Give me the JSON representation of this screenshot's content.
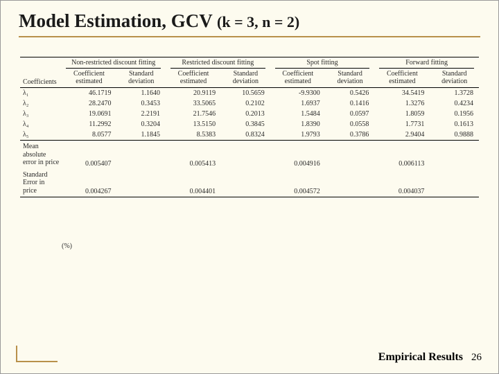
{
  "title_main": "Model Estimation, GCV",
  "title_sub": "(k = 3, n = 2)",
  "table": {
    "row_header_label": "Coefficients",
    "groups": [
      {
        "name": "Non-restricted discount fitting",
        "sub": [
          "Coefficient estimated",
          "Standard deviation"
        ]
      },
      {
        "name": "Restricted discount fitting",
        "sub": [
          "Coefficient estimated",
          "Standard deviation"
        ]
      },
      {
        "name": "Spot fitting",
        "sub": [
          "Coefficient estimated",
          "Standard deviation"
        ]
      },
      {
        "name": "Forward fitting",
        "sub": [
          "Coefficient estimated",
          "Standard deviation"
        ]
      }
    ],
    "coef_labels": [
      "λ₁",
      "λ₂",
      "λ₃",
      "λ₄",
      "λ₅"
    ],
    "rows": [
      [
        "46.1719",
        "1.1640",
        "20.9119",
        "10.5659",
        "-9.9300",
        "0.5426",
        "34.5419",
        "1.3728"
      ],
      [
        "28.2470",
        "0.3453",
        "33.5065",
        "0.2102",
        "1.6937",
        "0.1416",
        "1.3276",
        "0.4234"
      ],
      [
        "19.0691",
        "2.2191",
        "21.7546",
        "0.2013",
        "1.5484",
        "0.0597",
        "1.8059",
        "0.1956"
      ],
      [
        "11.2992",
        "0.3204",
        "13.5150",
        "0.3845",
        "1.8390",
        "0.0558",
        "1.7731",
        "0.1613"
      ],
      [
        "8.0577",
        "1.1845",
        "8.5383",
        "0.8324",
        "1.9793",
        "0.3786",
        "2.9404",
        "0.9888"
      ]
    ],
    "summary": [
      {
        "label_lines": [
          "Mean",
          "absolute",
          "error in price"
        ],
        "vals": [
          "0.005407",
          "",
          "0.005413",
          "",
          "0.004916",
          "",
          "0.006113",
          ""
        ]
      },
      {
        "label_lines": [
          "Standard",
          "Error in price"
        ],
        "vals": [
          "0.004267",
          "",
          "0.004401",
          "",
          "0.004572",
          "",
          "0.004037",
          ""
        ]
      }
    ],
    "pct_note": "(%)",
    "colors": {
      "background": "#fdfbef",
      "accent_rule": "#b8904a",
      "text": "#1a1a1a"
    },
    "font_sizes": {
      "title": 27,
      "title_sub": 22,
      "table": 10,
      "footer": 16
    }
  },
  "footer": {
    "section": "Empirical Results",
    "page": "26"
  }
}
